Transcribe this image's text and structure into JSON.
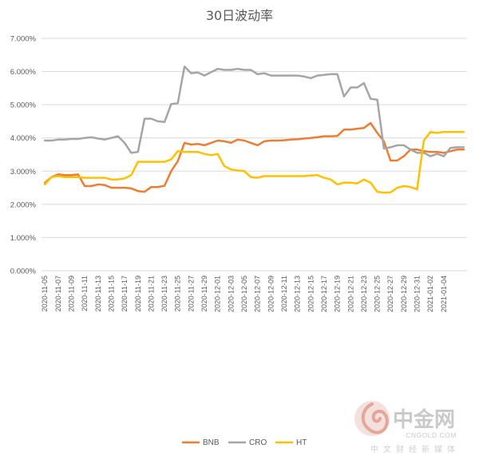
{
  "chart_data": {
    "type": "line",
    "title": "30日波动率",
    "ylim": [
      0,
      7
    ],
    "yticks": [
      "0.000%",
      "1.000%",
      "2.000%",
      "3.000%",
      "4.000%",
      "5.000%",
      "6.000%",
      "7.000%"
    ],
    "xtick_labels": [
      "2020-11-05",
      "2020-11-07",
      "2020-11-09",
      "2020-11-11",
      "2020-11-13",
      "2020-11-15",
      "2020-11-17",
      "2020-11-19",
      "2020-11-21",
      "2020-11-23",
      "2020-11-25",
      "2020-11-27",
      "2020-11-29",
      "2020-12-01",
      "2020-12-03",
      "2020-12-05",
      "2020-12-07",
      "2020-12-09",
      "2020-12-11",
      "2020-12-13",
      "2020-12-15",
      "2020-12-17",
      "2020-12-19",
      "2020-12-21",
      "2020-12-23",
      "2020-12-25",
      "2020-12-27",
      "2020-12-29",
      "2020-12-31",
      "2021-01-02",
      "2021-01-04"
    ],
    "grid": true,
    "legend_position": "bottom",
    "series": [
      {
        "name": "BNB",
        "color": "#ED7D31",
        "values": [
          2.65,
          2.82,
          2.9,
          2.88,
          2.88,
          2.9,
          2.55,
          2.55,
          2.6,
          2.58,
          2.5,
          2.5,
          2.5,
          2.48,
          2.4,
          2.38,
          2.52,
          2.52,
          2.56,
          3.0,
          3.3,
          3.85,
          3.8,
          3.82,
          3.78,
          3.85,
          3.92,
          3.9,
          3.85,
          3.95,
          3.92,
          3.85,
          3.78,
          3.9,
          3.92,
          3.92,
          3.93,
          3.95,
          3.96,
          3.98,
          4.0,
          4.02,
          4.05,
          4.05,
          4.06,
          4.25,
          4.25,
          4.28,
          4.3,
          4.45,
          4.15,
          3.9,
          3.32,
          3.32,
          3.45,
          3.65,
          3.65,
          3.6,
          3.58,
          3.58,
          3.55,
          3.6,
          3.65,
          3.65
        ]
      },
      {
        "name": "CRO",
        "color": "#A5A5A5",
        "values": [
          3.92,
          3.92,
          3.95,
          3.95,
          3.97,
          3.97,
          4.0,
          4.02,
          3.98,
          3.95,
          4.0,
          4.05,
          3.85,
          3.55,
          3.58,
          4.58,
          4.58,
          4.5,
          4.48,
          5.02,
          5.05,
          6.15,
          5.95,
          5.97,
          5.88,
          5.98,
          6.08,
          6.05,
          6.05,
          6.08,
          6.05,
          6.05,
          5.92,
          5.95,
          5.88,
          5.88,
          5.88,
          5.88,
          5.88,
          5.85,
          5.8,
          5.88,
          5.9,
          5.92,
          5.92,
          5.25,
          5.52,
          5.52,
          5.65,
          5.18,
          5.15,
          3.68,
          3.72,
          3.78,
          3.78,
          3.65,
          3.55,
          3.55,
          3.45,
          3.52,
          3.45,
          3.7,
          3.72,
          3.72
        ]
      },
      {
        "name": "HT",
        "color": "#FFC000",
        "values": [
          2.6,
          2.82,
          2.85,
          2.82,
          2.82,
          2.82,
          2.8,
          2.8,
          2.8,
          2.8,
          2.75,
          2.75,
          2.78,
          2.88,
          3.28,
          3.28,
          3.28,
          3.28,
          3.28,
          3.35,
          3.6,
          3.58,
          3.58,
          3.58,
          3.52,
          3.48,
          3.52,
          3.15,
          3.05,
          3.02,
          3.0,
          2.82,
          2.8,
          2.85,
          2.85,
          2.85,
          2.85,
          2.85,
          2.85,
          2.85,
          2.87,
          2.88,
          2.8,
          2.75,
          2.6,
          2.65,
          2.65,
          2.63,
          2.75,
          2.65,
          2.38,
          2.35,
          2.36,
          2.5,
          2.55,
          2.52,
          2.45,
          3.92,
          4.18,
          4.15,
          4.18,
          4.18,
          4.18,
          4.18
        ]
      }
    ]
  },
  "watermark": {
    "brand_cn": "中金网",
    "domain": "CNGOLD.COM",
    "subtitle": "中文财经新媒体"
  }
}
